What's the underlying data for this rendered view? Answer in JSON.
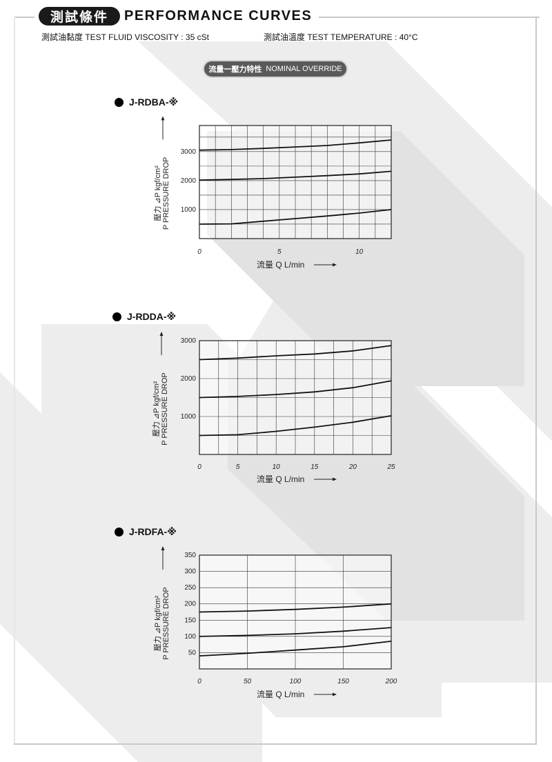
{
  "header": {
    "badge": "測試條件",
    "title": "PERFORMANCE CURVES",
    "viscosity": "測試油黏度  TEST FLUID VISCOSITY : 35 cSt",
    "temperature": "測試油溫度  TEST TEMPERATURE : 40°C"
  },
  "section": {
    "cn": "流量一壓力特性",
    "en": "NOMINAL OVERRIDE"
  },
  "colors": {
    "curve": "#111111",
    "grid": "#333333",
    "accent": "#1a1a1a",
    "watermark": "#e6e6e6"
  },
  "chart_data": [
    {
      "type": "line",
      "title": "J-RDBA-※",
      "xlabel": "流量 Q L/min",
      "ylabel_cn": "壓力 ⊿P kgf/cm²",
      "ylabel_en": "P PRESSURE DROP",
      "xlim": [
        0,
        12
      ],
      "ylim": [
        0,
        3900
      ],
      "x_ticks": [
        0,
        5,
        10
      ],
      "y_ticks": [
        1000,
        2000,
        3000
      ],
      "x_grid_step": 1,
      "y_grid_step": 500,
      "series": [
        {
          "x": [
            0,
            2,
            4,
            6,
            8,
            10,
            12
          ],
          "values": [
            3050,
            3070,
            3110,
            3160,
            3210,
            3300,
            3400
          ]
        },
        {
          "x": [
            0,
            2,
            4,
            6,
            8,
            10,
            12
          ],
          "values": [
            2020,
            2040,
            2070,
            2120,
            2170,
            2230,
            2320
          ]
        },
        {
          "x": [
            0,
            1,
            2,
            4,
            6,
            8,
            10,
            12
          ],
          "values": [
            500,
            505,
            510,
            600,
            690,
            780,
            880,
            1000
          ]
        }
      ]
    },
    {
      "type": "line",
      "title": "J-RDDA-※",
      "xlabel": "流量 Q L/min",
      "ylabel_cn": "壓力 ⊿P kgf/cm²",
      "ylabel_en": "P PRESSURE DROP",
      "xlim": [
        0,
        25
      ],
      "ylim": [
        0,
        3000
      ],
      "x_ticks": [
        0,
        5,
        10,
        15,
        20,
        25
      ],
      "y_ticks": [
        1000,
        2000,
        3000
      ],
      "x_grid_step": 2.5,
      "y_grid_step": 500,
      "series": [
        {
          "x": [
            0,
            5,
            10,
            15,
            20,
            25
          ],
          "values": [
            2500,
            2540,
            2600,
            2650,
            2730,
            2870
          ]
        },
        {
          "x": [
            0,
            5,
            10,
            15,
            20,
            25
          ],
          "values": [
            1500,
            1530,
            1580,
            1650,
            1760,
            1940
          ]
        },
        {
          "x": [
            0,
            5,
            10,
            15,
            20,
            25
          ],
          "values": [
            500,
            520,
            610,
            720,
            850,
            1020
          ]
        }
      ]
    },
    {
      "type": "line",
      "title": "J-RDFA-※",
      "xlabel": "流量 Q L/min",
      "ylabel_cn": "壓力 ⊿P kgf/cm²",
      "ylabel_en": "P PRESSURE DROP",
      "xlim": [
        0,
        200
      ],
      "ylim": [
        0,
        350
      ],
      "x_ticks": [
        0,
        50,
        100,
        150,
        200
      ],
      "y_ticks": [
        50,
        100,
        150,
        200,
        250,
        300,
        350
      ],
      "x_grid_step": 50,
      "y_grid_step": 50,
      "series": [
        {
          "x": [
            0,
            50,
            100,
            150,
            200
          ],
          "values": [
            175,
            178,
            183,
            190,
            200
          ]
        },
        {
          "x": [
            0,
            50,
            100,
            150,
            200
          ],
          "values": [
            100,
            103,
            108,
            116,
            127
          ]
        },
        {
          "x": [
            0,
            50,
            100,
            150,
            200
          ],
          "values": [
            40,
            48,
            58,
            68,
            85
          ]
        }
      ]
    }
  ]
}
